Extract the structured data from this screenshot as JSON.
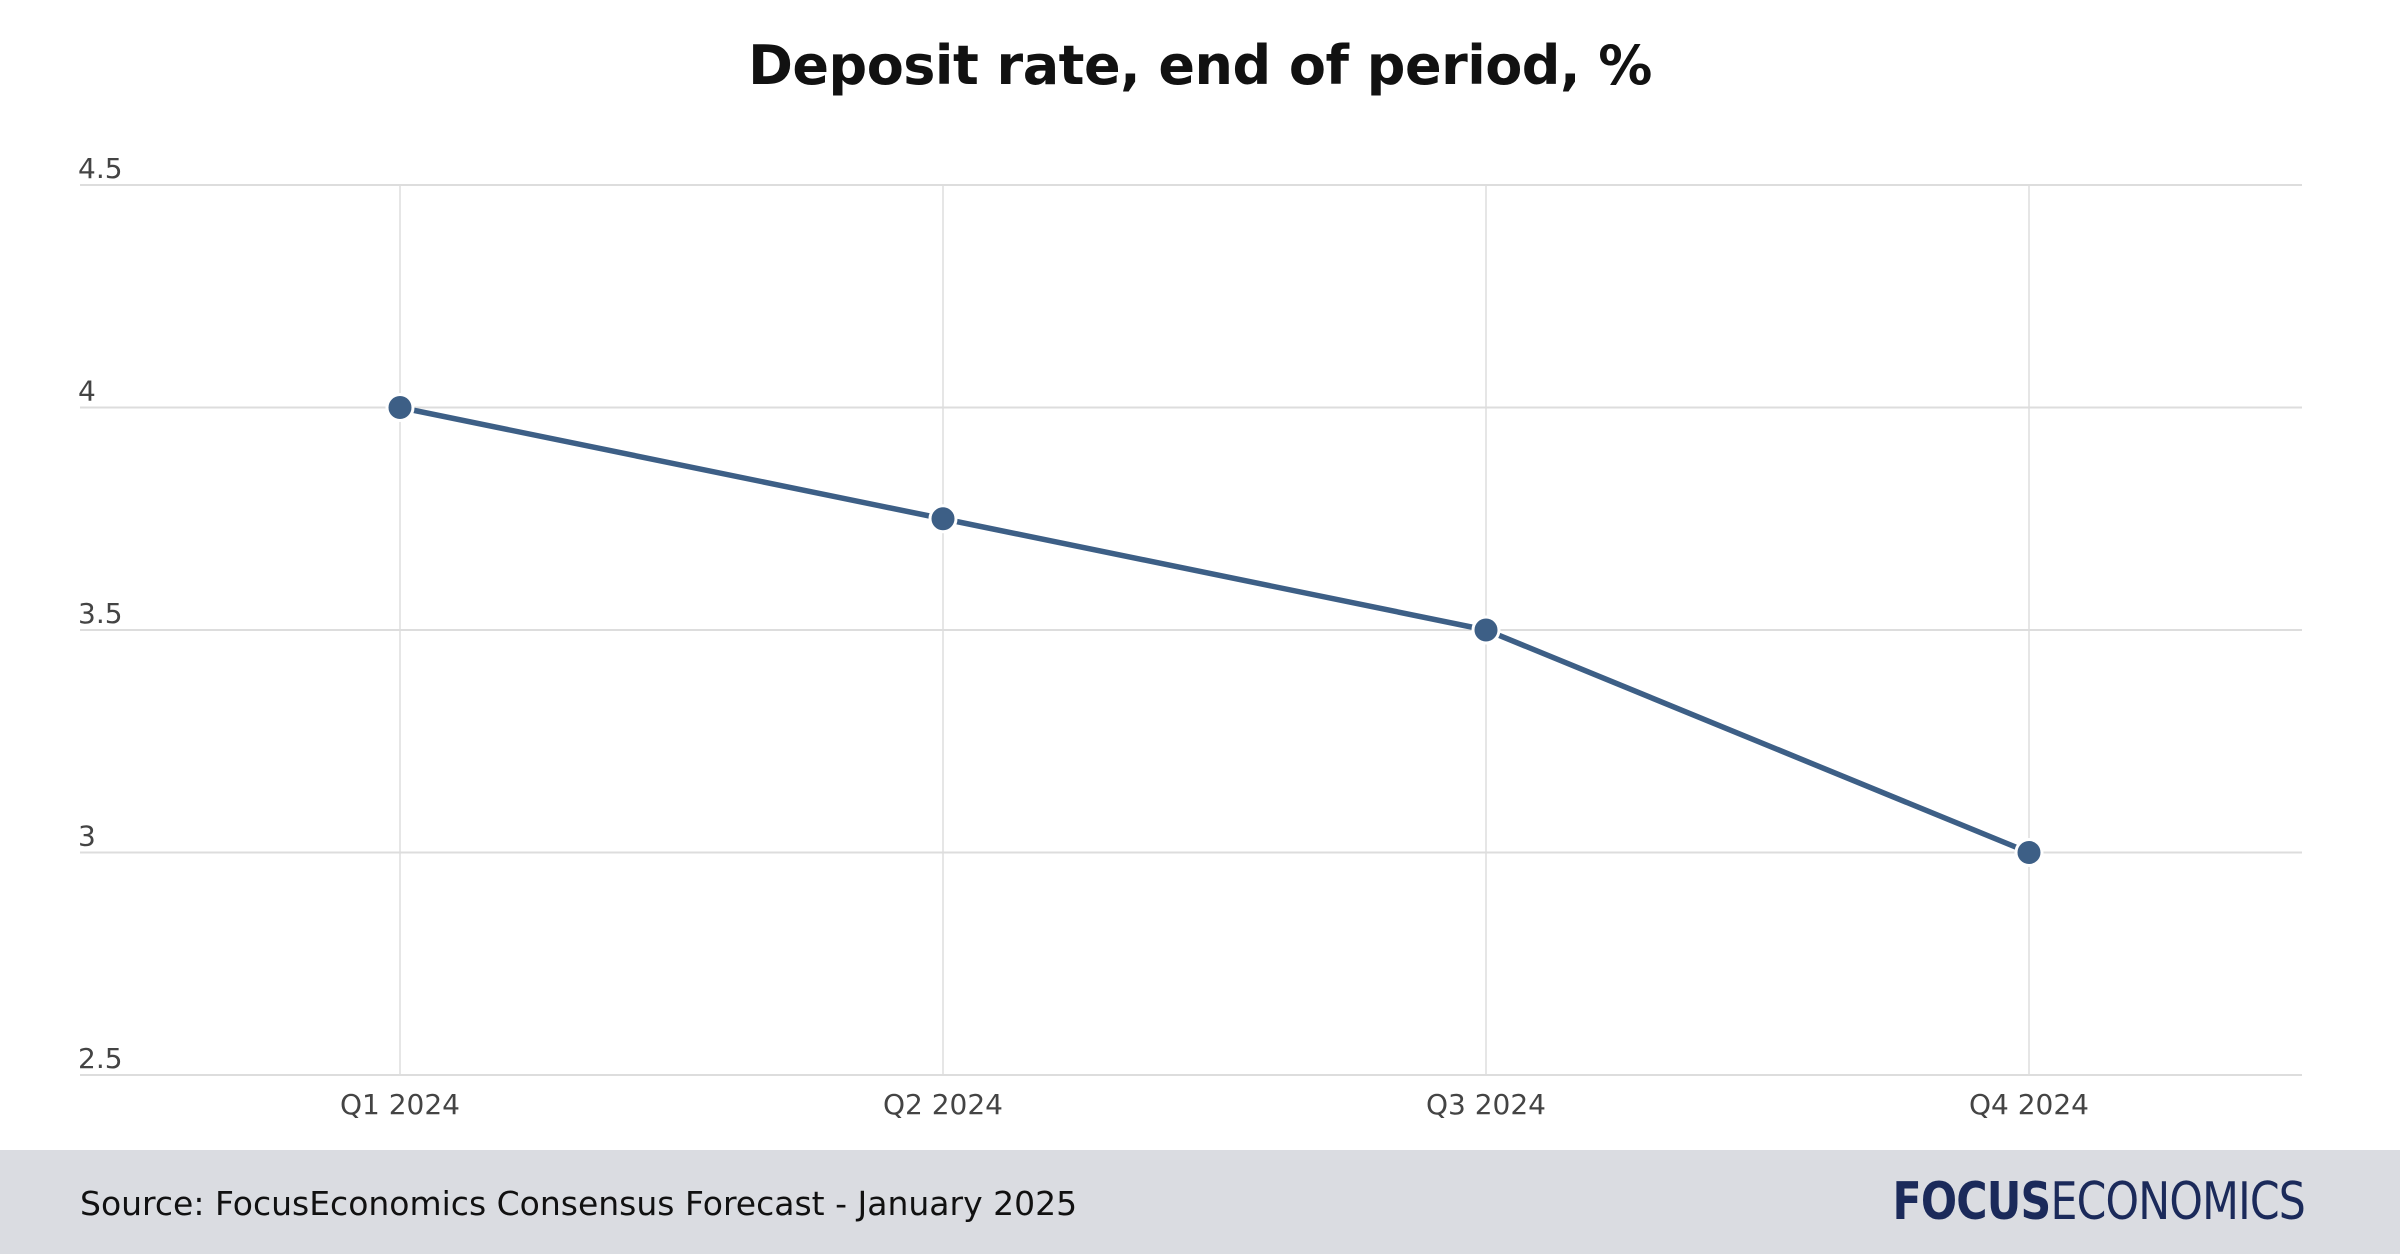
{
  "chart_data": {
    "type": "line",
    "title": "Deposit rate, end of period, %",
    "categories": [
      "Q1 2024",
      "Q2 2024",
      "Q3 2024",
      "Q4 2024"
    ],
    "series": [
      {
        "values": [
          4.0,
          3.75,
          3.5,
          3.0
        ]
      }
    ],
    "yticks": [
      "2.5",
      "3",
      "3.5",
      "4",
      "4.5"
    ],
    "ylim": [
      2.5,
      4.5
    ],
    "xlabel": "",
    "ylabel": "",
    "grid": true,
    "legend": "none",
    "colors": {
      "line": "#3d5f86",
      "grid": "#dddddd",
      "footer_bg": "#dadce1"
    }
  },
  "footer": {
    "source": "Source: FocusEconomics Consensus Forecast - January 2025",
    "logo_bold": "FOCUS",
    "logo_thin": "ECONOMICS"
  }
}
